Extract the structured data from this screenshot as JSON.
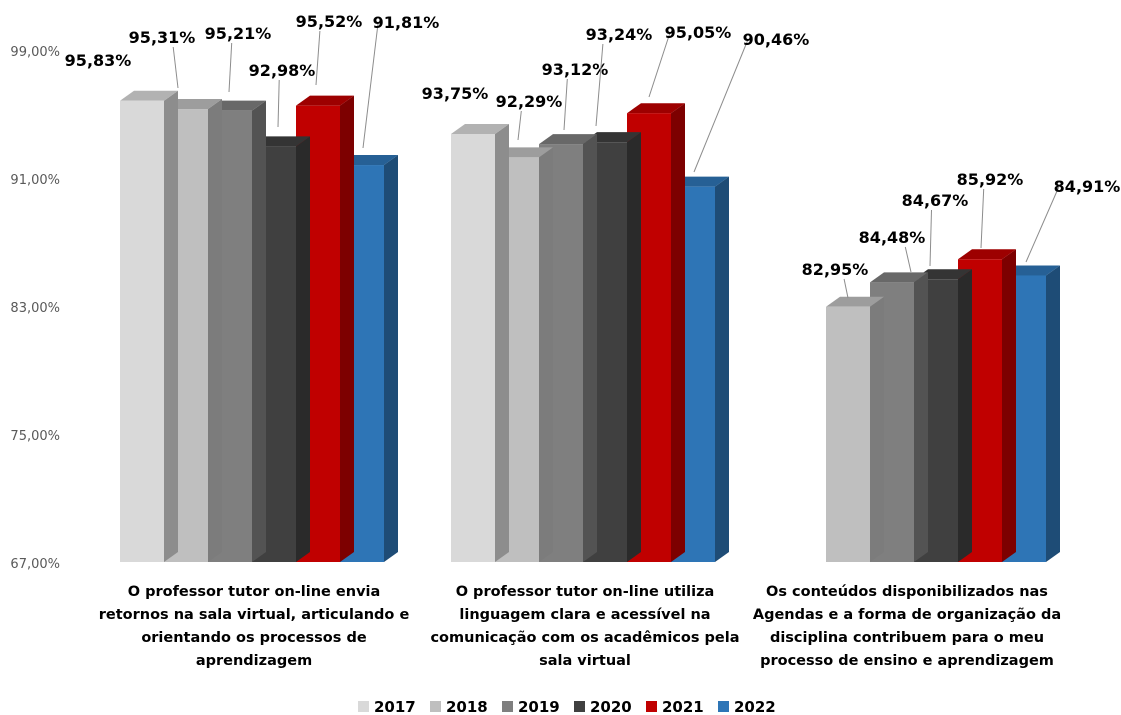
{
  "chart_data": {
    "type": "bar",
    "style": "3d-clustered-column",
    "title": "",
    "xlabel": "",
    "ylabel": "",
    "ylim": [
      67,
      99
    ],
    "y_ticks": [
      "67,00%",
      "75,00%",
      "83,00%",
      "91,00%",
      "99,00%"
    ],
    "categories": [
      [
        "O professor tutor on-line envia",
        "retornos na sala virtual, articulando e",
        "orientando os processos de",
        "aprendizagem"
      ],
      [
        "O professor tutor on-line utiliza",
        "linguagem clara e acessível na",
        "comunicação com os acadêmicos pela",
        "sala virtual"
      ],
      [
        "Os conteúdos disponibilizados nas",
        "Agendas e a forma de organização da",
        "disciplina contribuem para o meu",
        "processo de ensino e aprendizagem"
      ]
    ],
    "series": [
      {
        "name": "2017",
        "color": "#d9d9d9",
        "values": [
          95.83,
          93.75,
          null
        ],
        "labels": [
          "95,83%",
          "93,75%",
          ""
        ]
      },
      {
        "name": "2018",
        "color": "#bfbfbf",
        "values": [
          95.31,
          92.29,
          82.95
        ],
        "labels": [
          "95,31%",
          "92,29%",
          "82,95%"
        ]
      },
      {
        "name": "2019",
        "color": "#7f7f7f",
        "values": [
          95.21,
          93.12,
          84.48
        ],
        "labels": [
          "95,21%",
          "93,12%",
          "84,48%"
        ]
      },
      {
        "name": "2020",
        "color": "#404040",
        "values": [
          92.98,
          93.24,
          84.67
        ],
        "labels": [
          "92,98%",
          "93,24%",
          "84,67%"
        ]
      },
      {
        "name": "2021",
        "color": "#c00000",
        "values": [
          95.52,
          95.05,
          85.92
        ],
        "labels": [
          "95,52%",
          "95,05%",
          "85,92%"
        ]
      },
      {
        "name": "2022",
        "color": "#2e75b6",
        "values": [
          91.81,
          90.46,
          84.91
        ],
        "labels": [
          "91,81%",
          "90,46%",
          "84,91%"
        ]
      }
    ],
    "legend_position": "bottom",
    "grid": false
  }
}
